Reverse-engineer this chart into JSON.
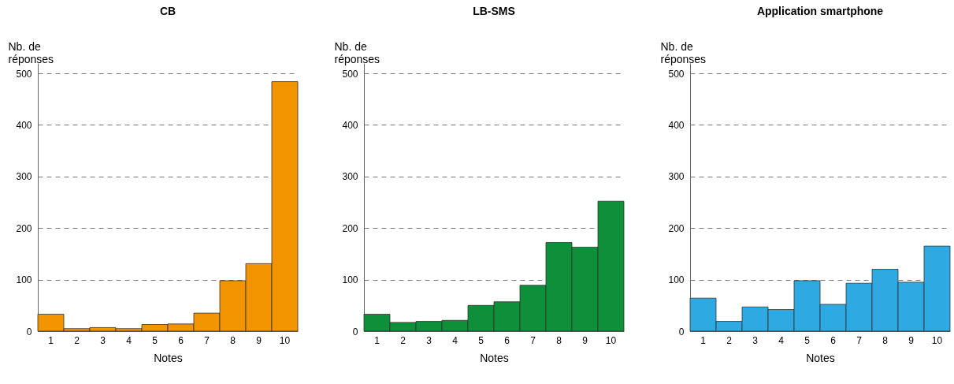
{
  "chart_data": [
    {
      "type": "bar",
      "title": "CB",
      "xlabel": "Notes",
      "ylabel": "Nb. de réponses",
      "categories": [
        "1",
        "2",
        "3",
        "4",
        "5",
        "6",
        "7",
        "8",
        "9",
        "10"
      ],
      "values": [
        33,
        5,
        7,
        5,
        13,
        14,
        35,
        98,
        131,
        484
      ],
      "color": "#f29400",
      "ylim": [
        0,
        520
      ],
      "yticks": [
        0,
        100,
        200,
        300,
        400,
        500
      ],
      "grid": "y"
    },
    {
      "type": "bar",
      "title": "LB-SMS",
      "xlabel": "Notes",
      "ylabel": "Nb. de réponses",
      "categories": [
        "1",
        "2",
        "3",
        "4",
        "5",
        "6",
        "7",
        "8",
        "9",
        "10"
      ],
      "values": [
        33,
        17,
        19,
        21,
        50,
        57,
        89,
        172,
        163,
        252
      ],
      "color": "#0e8f3a",
      "ylim": [
        0,
        520
      ],
      "yticks": [
        0,
        100,
        200,
        300,
        400,
        500
      ],
      "grid": "y"
    },
    {
      "type": "bar",
      "title": "Application smartphone",
      "xlabel": "Notes",
      "ylabel": "Nb. de réponses",
      "categories": [
        "1",
        "2",
        "3",
        "4",
        "5",
        "6",
        "7",
        "8",
        "9",
        "10"
      ],
      "values": [
        64,
        19,
        47,
        42,
        98,
        52,
        93,
        120,
        95,
        165
      ],
      "color": "#2ea9e1",
      "ylim": [
        0,
        520
      ],
      "yticks": [
        0,
        100,
        200,
        300,
        400,
        500
      ],
      "grid": "y"
    }
  ]
}
